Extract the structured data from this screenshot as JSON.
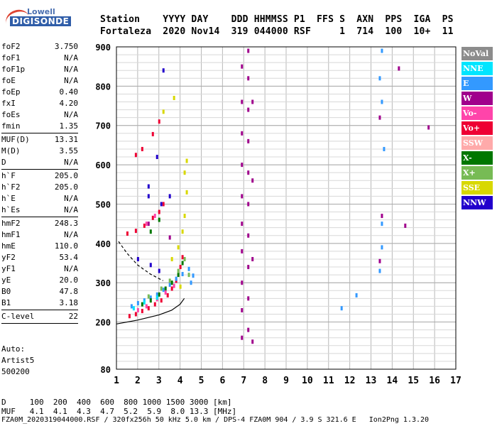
{
  "logo": {
    "line1": "Lowell",
    "line2": "DIGISONDE"
  },
  "header": {
    "line1": "Station    YYYY DAY    DDD HHMMSS P1  FFS S  AXN  PPS  IGA  PS",
    "line2": "Fortaleza  2020 Nov14  319 044000 RSF     1  714  100  10+  11"
  },
  "params": {
    "group1": [
      {
        "name": "foF2",
        "value": "3.750"
      },
      {
        "name": "foF1",
        "value": "N/A"
      },
      {
        "name": "foF1p",
        "value": "N/A"
      },
      {
        "name": "foE",
        "value": "N/A"
      },
      {
        "name": "foEp",
        "value": "0.40"
      },
      {
        "name": "fxI",
        "value": "4.20"
      },
      {
        "name": "foEs",
        "value": "N/A"
      },
      {
        "name": "fmin",
        "value": "1.35"
      }
    ],
    "group2": [
      {
        "name": "MUF(D)",
        "value": "13.31"
      },
      {
        "name": "M(D)",
        "value": "3.55"
      },
      {
        "name": "D",
        "value": "N/A"
      }
    ],
    "group3": [
      {
        "name": "h`F",
        "value": "205.0"
      },
      {
        "name": "h`F2",
        "value": "205.0"
      },
      {
        "name": "h`E",
        "value": "N/A"
      },
      {
        "name": "h`Es",
        "value": "N/A"
      }
    ],
    "group4": [
      {
        "name": "hmF2",
        "value": "248.3"
      },
      {
        "name": "hmF1",
        "value": "N/A"
      },
      {
        "name": "hmE",
        "value": "110.0"
      },
      {
        "name": "yF2",
        "value": "53.4"
      },
      {
        "name": "yF1",
        "value": "N/A"
      },
      {
        "name": "yE",
        "value": "20.0"
      },
      {
        "name": "B0",
        "value": "47.8"
      },
      {
        "name": "B1",
        "value": "3.18"
      }
    ],
    "group5": [
      {
        "name": "C-level",
        "value": "22"
      }
    ]
  },
  "auto": {
    "line1": "Auto:",
    "line2": "Artist5",
    "line3": "500200"
  },
  "muf_table": {
    "d_row": "D     100  200  400  600  800 1000 1500 3000 [km]",
    "muf_row": "MUF   4.1  4.1  4.3  4.7  5.2  5.9  8.0 13.3 [MHz]"
  },
  "footer": "FZA0M_2020319044000.RSF / 320fx256h 50 kHz 5.0 km / DPS-4 FZA0M 904 / 3.9 S 321.6 E   Ion2Png 1.3.20",
  "legend": [
    {
      "label": "NoVal",
      "color": "#8c8c8c"
    },
    {
      "label": "NNE",
      "color": "#00e5ff"
    },
    {
      "label": "E",
      "color": "#3399ff"
    },
    {
      "label": "W",
      "color": "#a0008c"
    },
    {
      "label": "Vo-",
      "color": "#ff44aa"
    },
    {
      "label": "Vo+",
      "color": "#ee0033"
    },
    {
      "label": "SSW",
      "color": "#ffaaaa"
    },
    {
      "label": "X-",
      "color": "#007700"
    },
    {
      "label": "X+",
      "color": "#77bb55"
    },
    {
      "label": "SSE",
      "color": "#d8d800"
    },
    {
      "label": "NNW",
      "color": "#2200cc"
    }
  ],
  "chart_data": {
    "type": "scatter",
    "xlabel": "",
    "ylabel": "",
    "xlim": [
      1,
      17
    ],
    "ylim": [
      80,
      900
    ],
    "x_ticks": [
      1,
      2,
      3,
      4,
      5,
      6,
      7,
      8,
      9,
      10,
      11,
      12,
      13,
      14,
      15,
      16,
      17
    ],
    "y_ticks": [
      80,
      200,
      300,
      400,
      500,
      600,
      700,
      800,
      900
    ],
    "grid": true,
    "series": [
      {
        "name": "Vo+",
        "color": "#ee0033",
        "points": [
          [
            1.6,
            215
          ],
          [
            1.9,
            220
          ],
          [
            2.2,
            228
          ],
          [
            2.5,
            235
          ],
          [
            2.8,
            245
          ],
          [
            3.1,
            255
          ],
          [
            3.4,
            268
          ],
          [
            3.6,
            285
          ],
          [
            3.8,
            305
          ],
          [
            4.0,
            340
          ],
          [
            4.1,
            365
          ],
          [
            1.5,
            425
          ],
          [
            1.9,
            432
          ],
          [
            2.3,
            445
          ],
          [
            2.7,
            465
          ],
          [
            3.0,
            480
          ],
          [
            3.2,
            500
          ],
          [
            1.9,
            625
          ],
          [
            2.2,
            640
          ],
          [
            2.7,
            678
          ],
          [
            3.0,
            710
          ]
        ]
      },
      {
        "name": "E",
        "color": "#3399ff",
        "points": [
          [
            1.7,
            240
          ],
          [
            2.0,
            248
          ],
          [
            2.3,
            255
          ],
          [
            2.6,
            262
          ],
          [
            2.9,
            270
          ],
          [
            3.2,
            282
          ],
          [
            3.5,
            295
          ],
          [
            3.8,
            310
          ],
          [
            4.1,
            322
          ],
          [
            4.4,
            335
          ],
          [
            4.5,
            300
          ],
          [
            4.6,
            318
          ],
          [
            11.6,
            235
          ],
          [
            12.3,
            268
          ],
          [
            13.4,
            330
          ],
          [
            13.5,
            390
          ],
          [
            13.5,
            450
          ],
          [
            13.6,
            640
          ],
          [
            13.5,
            760
          ],
          [
            13.4,
            820
          ],
          [
            13.5,
            890
          ]
        ]
      },
      {
        "name": "X-",
        "color": "#007700",
        "points": [
          [
            2.2,
            245
          ],
          [
            2.6,
            255
          ],
          [
            3.0,
            270
          ],
          [
            3.3,
            285
          ],
          [
            3.6,
            300
          ],
          [
            3.9,
            320
          ],
          [
            4.1,
            350
          ],
          [
            2.6,
            430
          ],
          [
            3.0,
            460
          ]
        ]
      },
      {
        "name": "SSE",
        "color": "#d8d800",
        "points": [
          [
            3.6,
            360
          ],
          [
            3.9,
            390
          ],
          [
            4.1,
            430
          ],
          [
            4.2,
            470
          ],
          [
            4.3,
            530
          ],
          [
            4.2,
            580
          ],
          [
            4.3,
            610
          ],
          [
            3.7,
            770
          ],
          [
            3.2,
            735
          ],
          [
            4.0,
            290
          ]
        ]
      },
      {
        "name": "W",
        "color": "#a0008c",
        "points": [
          [
            6.9,
            160
          ],
          [
            6.9,
            230
          ],
          [
            6.9,
            300
          ],
          [
            6.9,
            380
          ],
          [
            6.9,
            450
          ],
          [
            6.9,
            520
          ],
          [
            6.9,
            600
          ],
          [
            6.9,
            680
          ],
          [
            6.9,
            760
          ],
          [
            6.9,
            850
          ],
          [
            7.2,
            180
          ],
          [
            7.2,
            260
          ],
          [
            7.2,
            340
          ],
          [
            7.2,
            420
          ],
          [
            7.2,
            500
          ],
          [
            7.2,
            580
          ],
          [
            7.2,
            660
          ],
          [
            7.2,
            740
          ],
          [
            7.2,
            820
          ],
          [
            7.2,
            890
          ],
          [
            7.4,
            150
          ],
          [
            7.4,
            360
          ],
          [
            7.4,
            560
          ],
          [
            7.4,
            760
          ],
          [
            13.4,
            355
          ],
          [
            13.5,
            470
          ],
          [
            13.4,
            720
          ],
          [
            14.3,
            845
          ],
          [
            15.7,
            695
          ],
          [
            14.6,
            445
          ],
          [
            2.5,
            450
          ],
          [
            3.5,
            415
          ]
        ]
      },
      {
        "name": "Vo-",
        "color": "#ff44aa",
        "points": [
          [
            2.0,
            230
          ],
          [
            2.4,
            240
          ],
          [
            2.9,
            258
          ],
          [
            3.3,
            275
          ],
          [
            3.7,
            292
          ],
          [
            2.4,
            450
          ],
          [
            2.8,
            470
          ]
        ]
      },
      {
        "name": "NNW",
        "color": "#2200cc",
        "points": [
          [
            2.0,
            360
          ],
          [
            2.6,
            345
          ],
          [
            3.0,
            330
          ],
          [
            2.5,
            520
          ],
          [
            3.1,
            500
          ],
          [
            3.5,
            520
          ],
          [
            2.5,
            545
          ],
          [
            3.2,
            840
          ],
          [
            2.9,
            620
          ]
        ]
      },
      {
        "name": "X+",
        "color": "#77bb55",
        "points": [
          [
            2.5,
            265
          ],
          [
            3.1,
            285
          ],
          [
            3.5,
            305
          ],
          [
            3.9,
            330
          ],
          [
            4.2,
            360
          ],
          [
            4.4,
            320
          ]
        ]
      },
      {
        "name": "NNE",
        "color": "#00e5ff",
        "points": [
          [
            1.8,
            235
          ],
          [
            2.3,
            250
          ],
          [
            2.9,
            262
          ]
        ]
      }
    ],
    "curves": [
      {
        "name": "profile",
        "color": "#000000",
        "style": "solid",
        "points": [
          [
            1.0,
            195
          ],
          [
            2.0,
            205
          ],
          [
            3.0,
            218
          ],
          [
            3.6,
            230
          ],
          [
            4.0,
            245
          ],
          [
            4.2,
            260
          ]
        ]
      },
      {
        "name": "profile-dashed",
        "color": "#000000",
        "style": "dashed",
        "points": [
          [
            1.1,
            405
          ],
          [
            1.5,
            375
          ],
          [
            2.0,
            345
          ],
          [
            2.6,
            322
          ],
          [
            3.2,
            305
          ]
        ]
      }
    ]
  }
}
